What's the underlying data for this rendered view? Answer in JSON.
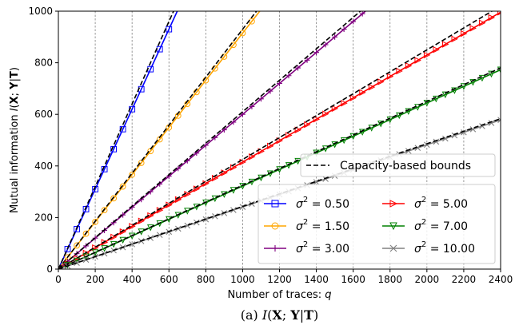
{
  "chart_data": {
    "type": "line",
    "xlabel": "Number of traces: q",
    "ylabel": "Mutual information I(X; Y|T)",
    "xlim": [
      0,
      2400
    ],
    "ylim": [
      0,
      1000
    ],
    "xticks": [
      0,
      200,
      400,
      600,
      800,
      1000,
      1200,
      1400,
      1600,
      1800,
      2000,
      2200,
      2400
    ],
    "yticks": [
      0,
      200,
      400,
      600,
      800,
      1000
    ],
    "grid": "vertical-dashed",
    "caption": "(a) I(X; Y|T)",
    "bound": {
      "label": "Capacity-based bounds",
      "color": "#000000",
      "style": "dashed"
    },
    "series": [
      {
        "name": "σ² = 0.50",
        "sigma": "0.50",
        "color": "#0000ff",
        "marker": "square",
        "slope": 1.55,
        "bound_slope": 1.6,
        "marker_step": 50
      },
      {
        "name": "σ² = 1.50",
        "sigma": "1.50",
        "color": "#ffa500",
        "marker": "circle",
        "slope": 0.915,
        "bound_slope": 0.93,
        "marker_step": 50
      },
      {
        "name": "σ² = 3.00",
        "sigma": "3.00",
        "color": "#800080",
        "marker": "plus",
        "slope": 0.6,
        "bound_slope": 0.61,
        "marker_step": 50
      },
      {
        "name": "σ² = 5.00",
        "sigma": "5.00",
        "color": "#ff0000",
        "marker": "triangle-right",
        "slope": 0.415,
        "bound_slope": 0.425,
        "marker_step": 50
      },
      {
        "name": "σ² = 7.00",
        "sigma": "7.00",
        "color": "#008000",
        "marker": "triangle-down",
        "slope": 0.322,
        "bound_slope": 0.325,
        "marker_step": 50
      },
      {
        "name": "σ² = 10.00",
        "sigma": "10.00",
        "color": "#808080",
        "marker": "x",
        "slope": 0.241,
        "bound_slope": 0.243,
        "marker_step": 50
      }
    ],
    "legends": {
      "bound_legend_placement": "right",
      "series_legend_placement": "lower-right",
      "series_legend_columns": 2
    }
  }
}
